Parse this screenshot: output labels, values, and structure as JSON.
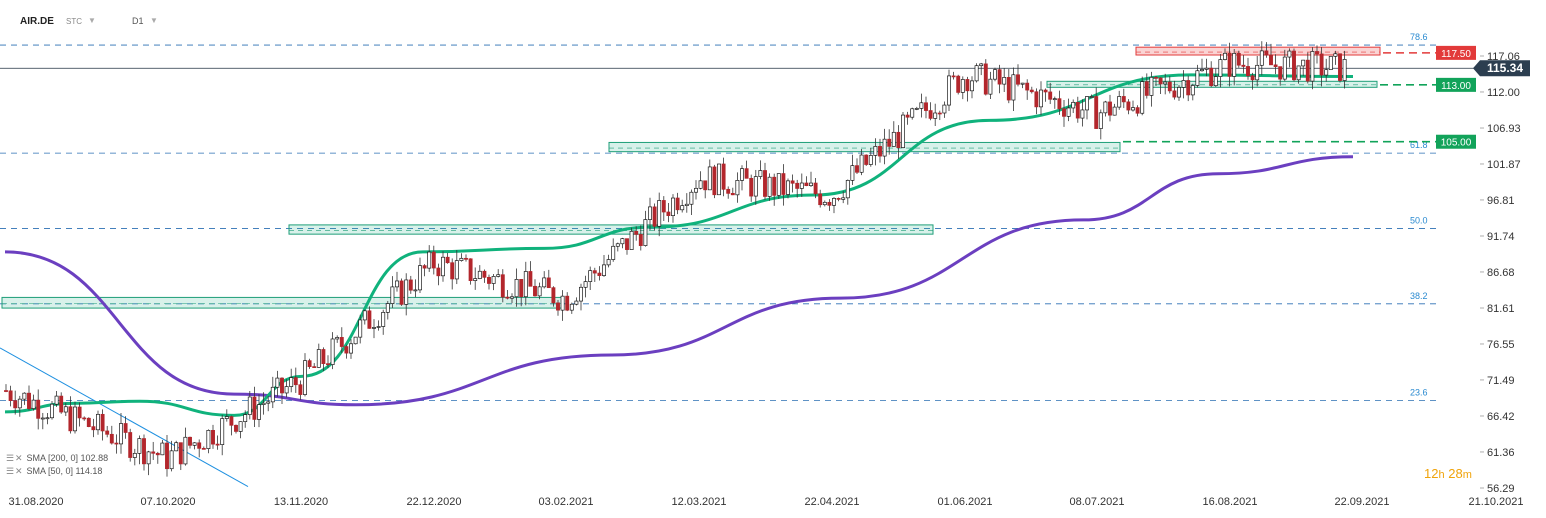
{
  "header": {
    "symbol": "AIR.DE",
    "market": "STC",
    "timeframe": "D1"
  },
  "timer": {
    "h": "12",
    "h_unit": "h",
    "m": "28",
    "m_unit": "m"
  },
  "indicators": [
    {
      "label": "SMA [200, 0] 102.88",
      "color": "#6b3fc0"
    },
    {
      "label": "SMA [50, 0] 114.18",
      "color": "#10b27c"
    }
  ],
  "chart_data": {
    "type": "candlestick",
    "ylim": [
      56.29,
      119.0
    ],
    "price_axis_labels": [
      "117.06",
      "112.00",
      "106.93",
      "101.87",
      "96.81",
      "91.74",
      "86.68",
      "81.61",
      "76.55",
      "71.49",
      "66.42",
      "61.36",
      "56.29"
    ],
    "date_labels": [
      "31.08.2020",
      "07.10.2020",
      "13.11.2020",
      "22.12.2020",
      "03.02.2021",
      "12.03.2021",
      "22.04.2021",
      "01.06.2021",
      "08.07.2021",
      "16.08.2021",
      "22.09.2021",
      "21.10.2021"
    ],
    "last_price": {
      "value": 115.34,
      "label": "115.34"
    },
    "fib_levels": [
      {
        "label": "78.6",
        "value": 118.6
      },
      {
        "label": "61.8",
        "value": 103.4
      },
      {
        "label": "50.0",
        "value": 92.8
      },
      {
        "label": "38.2",
        "value": 82.2
      },
      {
        "label": "23.6",
        "value": 68.6
      }
    ],
    "level_tags": [
      {
        "label": "117.50",
        "value": 117.5,
        "color": "#e23a3a"
      },
      {
        "label": "113.00",
        "value": 113.0,
        "color": "#12a35a"
      },
      {
        "label": "105.00",
        "value": 105.0,
        "color": "#12a35a"
      }
    ],
    "zones": [
      {
        "from": "31.08.2020",
        "to": "03.02.2021",
        "low": 81.6,
        "high": 83.1,
        "color": "#1e9e78"
      },
      {
        "from": "13.11.2020",
        "to": "22.04.2021",
        "low": 92.0,
        "high": 93.3,
        "color": "#1e9e78"
      },
      {
        "from": "12.03.2021",
        "to": "08.07.2021",
        "low": 103.6,
        "high": 104.9,
        "color": "#1e9e78"
      },
      {
        "from": "01.06.2021",
        "to": "22.09.2021",
        "low": 112.8,
        "high": 113.5,
        "color": "#1e9e78"
      },
      {
        "from": "08.07.2021",
        "to": "22.09.2021",
        "low": 117.2,
        "high": 118.3,
        "color": "#e23a3a"
      }
    ],
    "trendline": {
      "from": [
        "31.08.2020",
        76.0
      ],
      "to": [
        "13.11.2020",
        56.5
      ]
    },
    "sma200": [
      [
        0,
        89.5
      ],
      [
        0.17,
        69.5
      ],
      [
        0.26,
        68.0
      ],
      [
        0.45,
        75.0
      ],
      [
        0.62,
        83.0
      ],
      [
        0.8,
        94.0
      ],
      [
        0.9,
        100.5
      ],
      [
        1.0,
        102.88
      ]
    ],
    "sma50": [
      [
        0,
        67.0
      ],
      [
        0.05,
        68.2
      ],
      [
        0.1,
        68.5
      ],
      [
        0.17,
        66.5
      ],
      [
        0.22,
        72.0
      ],
      [
        0.31,
        89.5
      ],
      [
        0.4,
        90.0
      ],
      [
        0.48,
        93.0
      ],
      [
        0.6,
        97.5
      ],
      [
        0.73,
        108.0
      ],
      [
        0.88,
        114.4
      ],
      [
        1.0,
        114.18
      ]
    ],
    "series": [
      {
        "name": "AIR.DE",
        "points_per_anchor": "daily",
        "anchors": [
          [
            "31.08.2020",
            70.0
          ],
          [
            "07.10.2020",
            60.5
          ],
          [
            "13.11.2020",
            71.5
          ],
          [
            "22.12.2020",
            88.0
          ],
          [
            "03.02.2021",
            83.0
          ],
          [
            "12.03.2021",
            100.0
          ],
          [
            "22.04.2021",
            97.5
          ],
          [
            "01.06.2021",
            114.5
          ],
          [
            "08.07.2021",
            109.0
          ],
          [
            "16.08.2021",
            116.0
          ],
          [
            "22.09.2021",
            115.34
          ]
        ]
      }
    ]
  }
}
